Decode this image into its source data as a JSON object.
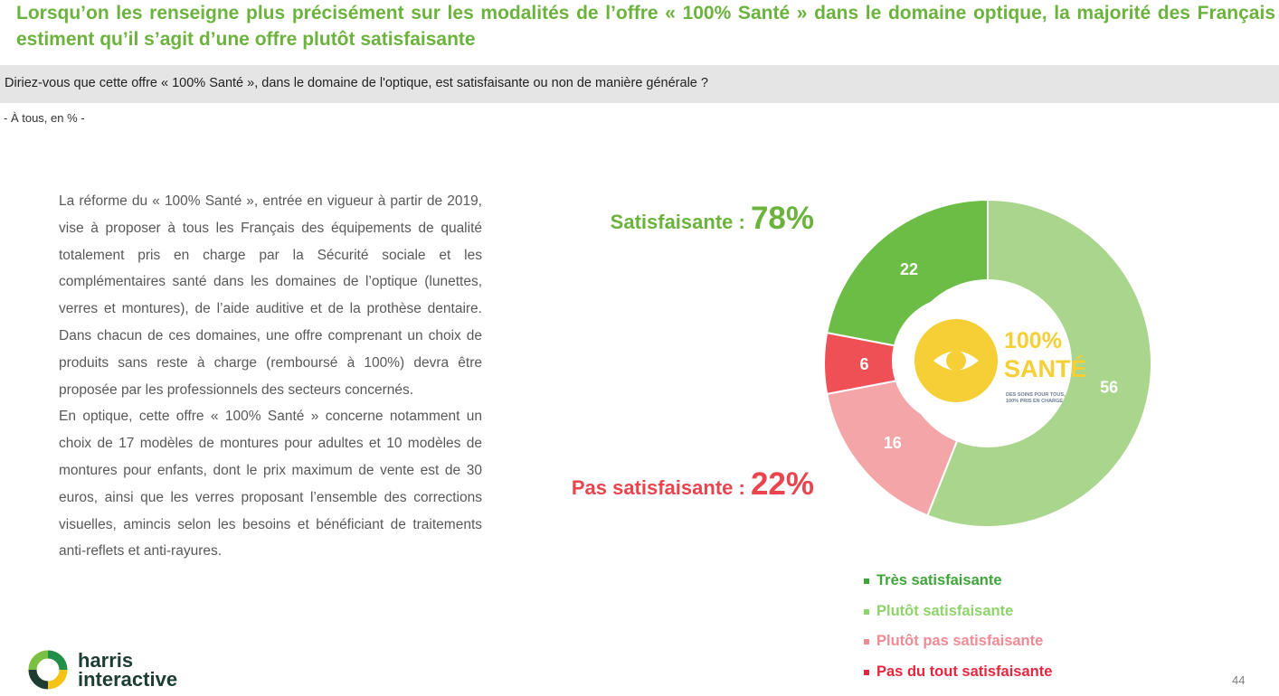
{
  "slide": {
    "title": "Lorsqu’on les renseigne plus précisément sur les modalités de l’offre « 100% Santé » dans le domaine optique, la majorité des Français estiment qu’il s’agit d’une offre plutôt satisfaisante",
    "question": "Diriez-vous que cette offre « 100% Santé », dans le domaine de l'optique, est satisfaisante ou non de manière générale ?",
    "base": "- À tous, en % -",
    "body_paragraphs": [
      "La réforme du « 100% Santé », entrée en vigueur à partir de 2019, vise à proposer à tous les Français des équipements de qualité totalement pris en charge par la Sécurité sociale et les complémentaires santé dans les domaines de l’optique (lunettes, verres et montures), de l’aide auditive et de la prothèse dentaire. Dans chacun de ces domaines, une offre comprenant un choix de produits sans reste à charge (remboursé à 100%) devra être proposée par les professionnels des secteurs concernés.",
      "En optique, cette offre « 100% Santé » concerne notamment un choix de 17 modèles de montures pour adultes et 10 modèles de montures pour enfants, dont le prix maximum de vente est de 30 euros, ainsi que les verres proposant l’ensemble des corrections visuelles, amincis selon les besoins et bénéficiant de traitements anti-reflets et anti-rayures."
    ],
    "summary_positive": {
      "label": "Satisfaisante : ",
      "value": "78%",
      "color": "#6cb33e"
    },
    "summary_negative": {
      "label": "Pas satisfaisante : ",
      "value": "22%",
      "color": "#e8454f"
    },
    "logo": {
      "line1": "harris",
      "line2": "interactive"
    },
    "center_logo": {
      "big": "100%",
      "big2": "SANTÉ",
      "tagline1": "DES SOINS POUR TOUS,",
      "tagline2": "100% PRIS EN CHARGE",
      "color": "#f5cf35"
    },
    "page_number": "44"
  },
  "chart_data": {
    "type": "pie",
    "title": "",
    "categories": [
      "Très satisfaisante",
      "Plutôt satisfaisante",
      "Plutôt pas satisfaisante",
      "Pas du tout satisfaisante"
    ],
    "values": [
      22,
      56,
      16,
      6
    ],
    "colors": [
      "#6cbd45",
      "#a9d58c",
      "#f4a5a7",
      "#ee5055"
    ],
    "label_colors": [
      "#ffffff",
      "#ffffff",
      "#ffffff",
      "#ffffff"
    ],
    "legend_colors": [
      "#3ea53a",
      "#8fd36b",
      "#f08a95",
      "#e5263d"
    ],
    "legend_position": "bottom-right",
    "start_category": "Très satisfaisante",
    "donut": true
  }
}
